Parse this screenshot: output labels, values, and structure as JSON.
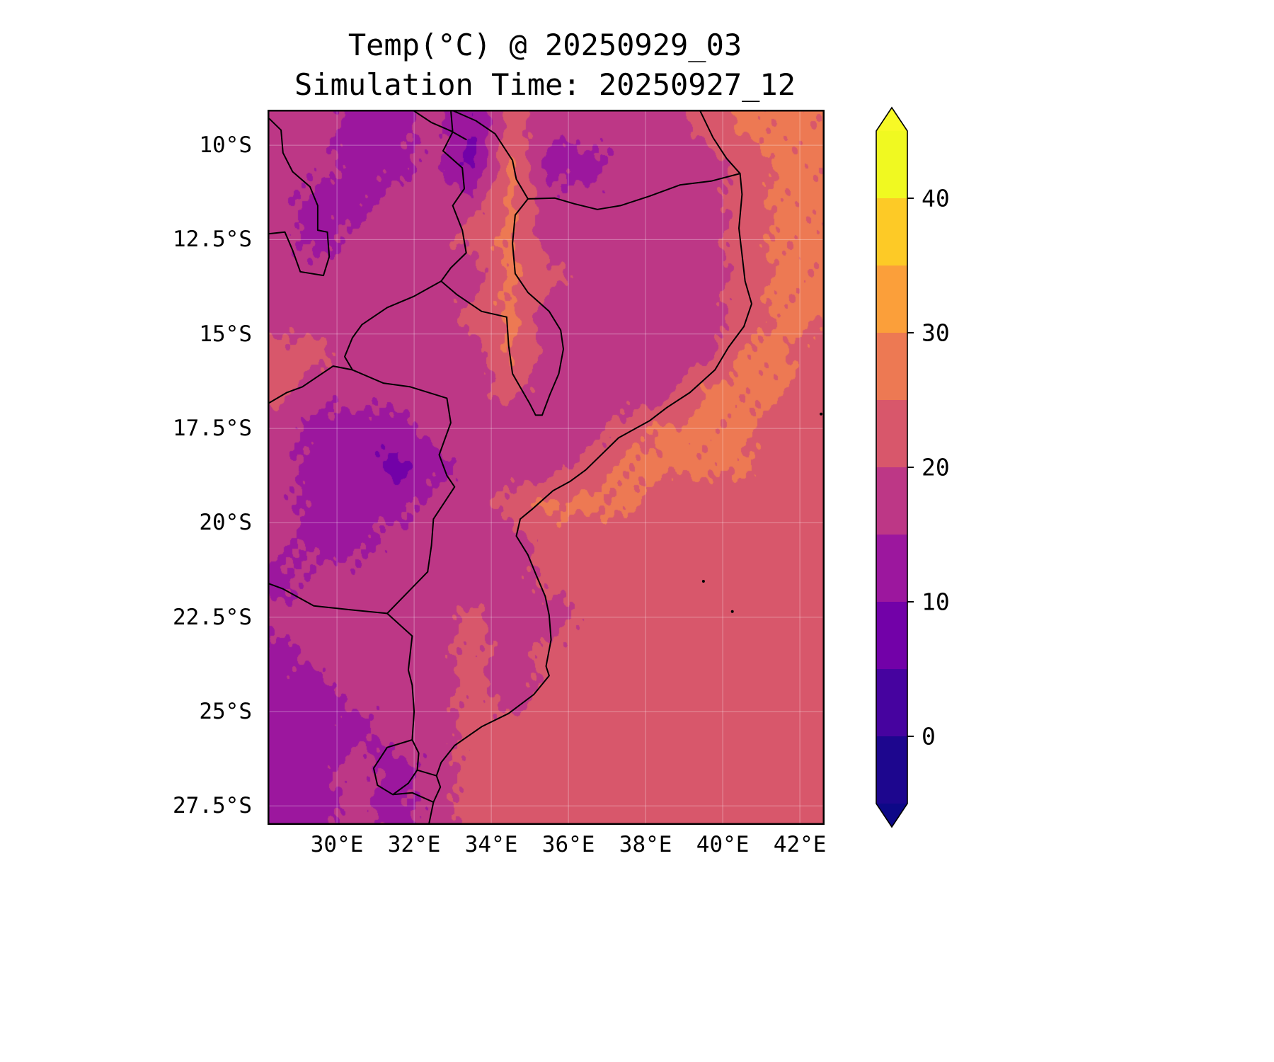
{
  "title": {
    "line1": "Temp(°C) @ 20250929_03",
    "line2": "Simulation Time: 20250927_12"
  },
  "chart_data": {
    "type": "heatmap",
    "title": "Temp(°C) @ 20250929_03",
    "subtitle": "Simulation Time: 20250927_12",
    "field": "Temperature",
    "units": "°C",
    "valid_time": "20250929_03",
    "simulation_time": "20250927_12",
    "lon_range": [
      28.2,
      42.64
    ],
    "lat_range": [
      9.06,
      28.0
    ],
    "x_ticks": [
      {
        "label": "30°E",
        "lon": 30
      },
      {
        "label": "32°E",
        "lon": 32
      },
      {
        "label": "34°E",
        "lon": 34
      },
      {
        "label": "36°E",
        "lon": 36
      },
      {
        "label": "38°E",
        "lon": 38
      },
      {
        "label": "40°E",
        "lon": 40
      },
      {
        "label": "42°E",
        "lon": 42
      }
    ],
    "y_ticks": [
      {
        "label": "10°S",
        "lat": 10
      },
      {
        "label": "12.5°S",
        "lat": 12.5
      },
      {
        "label": "15°S",
        "lat": 15
      },
      {
        "label": "17.5°S",
        "lat": 17.5
      },
      {
        "label": "20°S",
        "lat": 20
      },
      {
        "label": "22.5°S",
        "lat": 22.5
      },
      {
        "label": "25°S",
        "lat": 25
      },
      {
        "label": "27.5°S",
        "lat": 27.5
      }
    ],
    "grid_lons": [
      28.5,
      29.5,
      30.5,
      31.5,
      32.5,
      33.5,
      34.5,
      35.5,
      36.5,
      37.5,
      38.5,
      39.5,
      40.5,
      41.5,
      42.5
    ],
    "grid_lats": [
      9.5,
      10.5,
      11.5,
      12.5,
      13.5,
      14.5,
      15.5,
      16.5,
      17.5,
      18.5,
      19.5,
      20.5,
      21.5,
      22.5,
      23.5,
      24.5,
      25.5,
      26.5,
      27.5
    ],
    "temps": [
      [
        17,
        17,
        13,
        13,
        17,
        10,
        22,
        17,
        17,
        17,
        17,
        22,
        26,
        26,
        26
      ],
      [
        17,
        17,
        13,
        13,
        17,
        8,
        26,
        13,
        13,
        17,
        17,
        17,
        22,
        26,
        26
      ],
      [
        17,
        13,
        13,
        17,
        17,
        17,
        26,
        17,
        17,
        17,
        17,
        17,
        22,
        26,
        26
      ],
      [
        17,
        13,
        17,
        17,
        17,
        22,
        26,
        17,
        17,
        17,
        17,
        17,
        22,
        26,
        26
      ],
      [
        17,
        17,
        17,
        17,
        17,
        17,
        26,
        22,
        17,
        17,
        17,
        17,
        22,
        26,
        26
      ],
      [
        17,
        17,
        17,
        17,
        17,
        22,
        26,
        17,
        17,
        17,
        17,
        17,
        22,
        26,
        26
      ],
      [
        22,
        22,
        17,
        17,
        17,
        17,
        26,
        17,
        17,
        17,
        17,
        17,
        26,
        26,
        22
      ],
      [
        22,
        17,
        17,
        17,
        17,
        17,
        22,
        17,
        17,
        17,
        17,
        26,
        26,
        26,
        22
      ],
      [
        17,
        13,
        13,
        13,
        17,
        17,
        17,
        17,
        17,
        22,
        26,
        26,
        26,
        22,
        22
      ],
      [
        17,
        13,
        13,
        8,
        13,
        17,
        17,
        17,
        22,
        26,
        26,
        26,
        26,
        22,
        22
      ],
      [
        17,
        13,
        13,
        13,
        17,
        17,
        22,
        26,
        26,
        26,
        22,
        22,
        22,
        22,
        22
      ],
      [
        17,
        13,
        13,
        17,
        17,
        17,
        17,
        22,
        22,
        22,
        22,
        22,
        22,
        22,
        22
      ],
      [
        13,
        17,
        17,
        17,
        17,
        17,
        17,
        22,
        22,
        22,
        22,
        22,
        22,
        22,
        22
      ],
      [
        17,
        17,
        17,
        17,
        17,
        22,
        17,
        17,
        22,
        22,
        22,
        22,
        22,
        22,
        22
      ],
      [
        13,
        17,
        17,
        17,
        17,
        22,
        17,
        22,
        22,
        22,
        22,
        22,
        22,
        22,
        22
      ],
      [
        13,
        13,
        17,
        17,
        17,
        22,
        17,
        22,
        22,
        22,
        22,
        22,
        22,
        22,
        22
      ],
      [
        13,
        13,
        13,
        17,
        17,
        22,
        22,
        22,
        22,
        22,
        22,
        22,
        22,
        22,
        22
      ],
      [
        13,
        13,
        17,
        13,
        17,
        22,
        22,
        22,
        22,
        22,
        22,
        22,
        22,
        22,
        22
      ],
      [
        13,
        13,
        17,
        13,
        17,
        22,
        22,
        22,
        22,
        22,
        22,
        22,
        22,
        22,
        22
      ]
    ],
    "colorbar": {
      "levels": [
        -5,
        0,
        5,
        10,
        15,
        20,
        25,
        30,
        35,
        40,
        45
      ],
      "band_colors": [
        "#1d068e",
        "#46039f",
        "#7201a8",
        "#9c179e",
        "#bd3786",
        "#d8576b",
        "#ed7953",
        "#fb9f3a",
        "#fdca26",
        "#f0f921"
      ],
      "under_color": "#0d0887",
      "over_color": "#f7f926",
      "extend": "both",
      "tick_values": [
        0,
        10,
        20,
        30,
        40
      ],
      "tick_labels": [
        "0",
        "10",
        "20",
        "30",
        "40"
      ]
    },
    "legend_position": "right",
    "grid": true
  }
}
